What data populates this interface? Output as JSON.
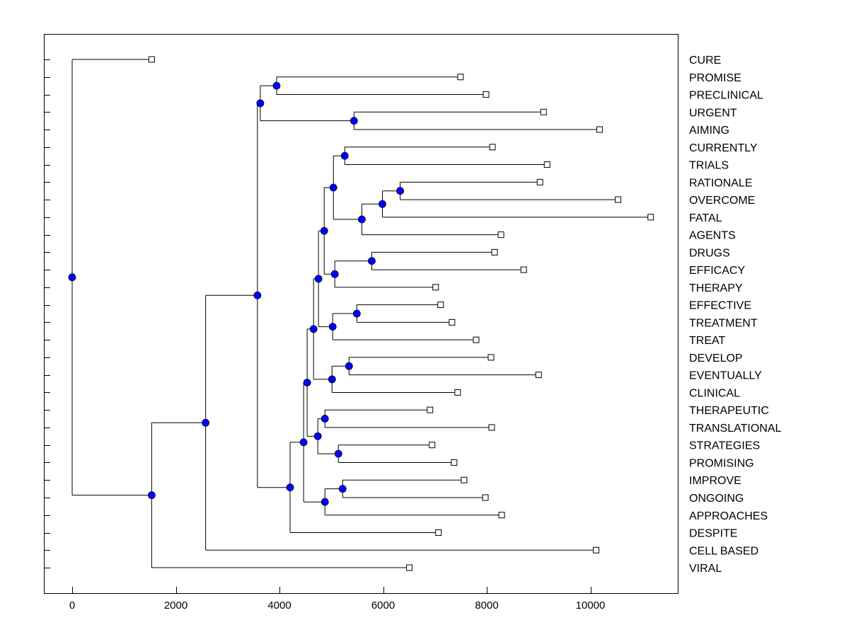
{
  "chart_data": {
    "type": "dendrogram",
    "title": "",
    "xlabel": "",
    "ylabel": "",
    "xlim": [
      -550,
      11700
    ],
    "x_ticks": [
      0,
      2000,
      4000,
      6000,
      8000,
      10000
    ],
    "grid": false,
    "node_color": "#0000ff",
    "leaf_marker": "open-square",
    "tree": {
      "height": 0,
      "children": [
        {
          "label": "CURE",
          "height": 1534
        },
        {
          "height": 1534,
          "children": [
            {
              "height": 2575,
              "children": [
                {
                  "height": 3575,
                  "children": [
                    {
                      "height": 3630,
                      "children": [
                        {
                          "height": 3945,
                          "children": [
                            {
                              "label": "PROMISE",
                              "height": 7493
                            },
                            {
                              "label": "PRECLINICAL",
                              "height": 7986
                            }
                          ]
                        },
                        {
                          "height": 5438,
                          "children": [
                            {
                              "label": "URGENT",
                              "height": 9096
                            },
                            {
                              "label": "AIMING",
                              "height": 10178
                            }
                          ]
                        }
                      ]
                    },
                    {
                      "height": 4205,
                      "children": [
                        {
                          "height": 4466,
                          "children": [
                            {
                              "height": 4534,
                              "children": [
                                {
                                  "height": 4658,
                                  "children": [
                                    {
                                      "height": 4753,
                                      "children": [
                                        {
                                          "height": 4863,
                                          "children": [
                                            {
                                              "height": 5041,
                                              "children": [
                                                {
                                                  "height": 5260,
                                                  "children": [
                                                    {
                                                      "label": "CURRENTLY",
                                                      "height": 8110
                                                    },
                                                    {
                                                      "label": "TRIALS",
                                                      "height": 9164
                                                    }
                                                  ]
                                                },
                                                {
                                                  "height": 5589,
                                                  "children": [
                                                    {
                                                      "height": 5986,
                                                      "children": [
                                                        {
                                                          "height": 6329,
                                                          "children": [
                                                            {
                                                              "label": "RATIONALE",
                                                              "height": 9027
                                                            },
                                                            {
                                                              "label": "OVERCOME",
                                                              "height": 10534
                                                            }
                                                          ]
                                                        },
                                                        {
                                                          "label": "FATAL",
                                                          "height": 11164
                                                        }
                                                      ]
                                                    },
                                                    {
                                                      "label": "AGENTS",
                                                      "height": 8274
                                                    }
                                                  ]
                                                }
                                              ]
                                            },
                                            {
                                              "height": 5068,
                                              "children": [
                                                {
                                                  "height": 5781,
                                                  "children": [
                                                    {
                                                      "label": "DRUGS",
                                                      "height": 8151
                                                    },
                                                    {
                                                      "label": "EFFICACY",
                                                      "height": 8712
                                                    }
                                                  ]
                                                },
                                                {
                                                  "label": "THERAPY",
                                                  "height": 7014
                                                }
                                              ]
                                            }
                                          ]
                                        },
                                        {
                                          "height": 5027,
                                          "children": [
                                            {
                                              "height": 5493,
                                              "children": [
                                                {
                                                  "label": "EFFECTIVE",
                                                  "height": 7110
                                                },
                                                {
                                                  "label": "TREATMENT",
                                                  "height": 7329
                                                }
                                              ]
                                            },
                                            {
                                              "label": "TREAT",
                                              "height": 7795
                                            }
                                          ]
                                        }
                                      ]
                                    },
                                    {
                                      "height": 5014,
                                      "children": [
                                        {
                                          "height": 5342,
                                          "children": [
                                            {
                                              "label": "DEVELOP",
                                              "height": 8082
                                            },
                                            {
                                              "label": "EVENTUALLY",
                                              "height": 9000
                                            }
                                          ]
                                        },
                                        {
                                          "label": "CLINICAL",
                                          "height": 7438
                                        }
                                      ]
                                    }
                                  ]
                                },
                                {
                                  "height": 4740,
                                  "children": [
                                    {
                                      "height": 4877,
                                      "children": [
                                        {
                                          "label": "THERAPEUTIC",
                                          "height": 6904
                                        },
                                        {
                                          "label": "TRANSLATIONAL",
                                          "height": 8096
                                        }
                                      ]
                                    },
                                    {
                                      "height": 5137,
                                      "children": [
                                        {
                                          "label": "STRATEGIES",
                                          "height": 6945
                                        },
                                        {
                                          "label": "PROMISING",
                                          "height": 7370
                                        }
                                      ]
                                    }
                                  ]
                                }
                              ]
                            },
                            {
                              "height": 4877,
                              "children": [
                                {
                                  "height": 5219,
                                  "children": [
                                    {
                                      "label": "IMPROVE",
                                      "height": 7562
                                    },
                                    {
                                      "label": "ONGOING",
                                      "height": 7973
                                    }
                                  ]
                                },
                                {
                                  "label": "APPROACHES",
                                  "height": 8288
                                }
                              ]
                            }
                          ]
                        },
                        {
                          "label": "DESPITE",
                          "height": 7068
                        }
                      ]
                    }
                  ]
                },
                {
                  "label": "CELL BASED",
                  "height": 10110
                }
              ]
            },
            {
              "label": "VIRAL",
              "height": 6507
            }
          ]
        }
      ]
    }
  }
}
